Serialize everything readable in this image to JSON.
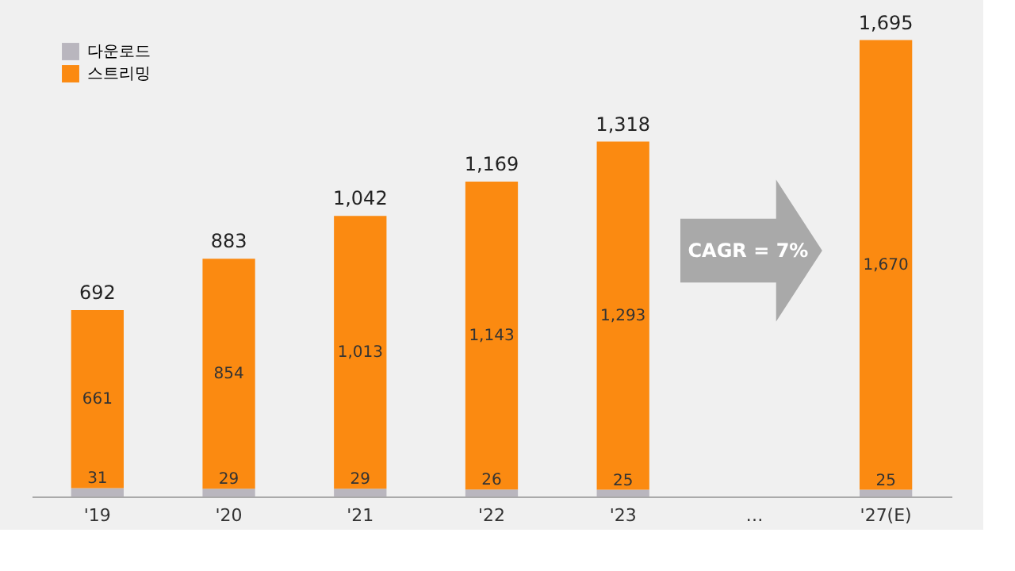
{
  "chart_data": {
    "type": "bar",
    "stacked": true,
    "legend": "top left",
    "categories": [
      "'19",
      "'20",
      "'21",
      "'22",
      "'23",
      "…",
      "'27(E)"
    ],
    "series": [
      {
        "name": "다운로드",
        "color": "#b9b6be",
        "values": [
          31,
          29,
          29,
          26,
          25,
          null,
          25
        ],
        "value_labels": [
          "31",
          "29",
          "29",
          "26",
          "25",
          null,
          "25"
        ]
      },
      {
        "name": "스트리밍",
        "color": "#fb8a11",
        "values": [
          661,
          854,
          1013,
          1143,
          1293,
          null,
          1670
        ],
        "value_labels": [
          "661",
          "854",
          "1,013",
          "1,143",
          "1,293",
          null,
          "1,670"
        ]
      }
    ],
    "totals": [
      "692",
      "883",
      "1,042",
      "1,169",
      "1,318",
      null,
      "1,695"
    ],
    "annotations": [
      "CAGR = 7%"
    ]
  }
}
